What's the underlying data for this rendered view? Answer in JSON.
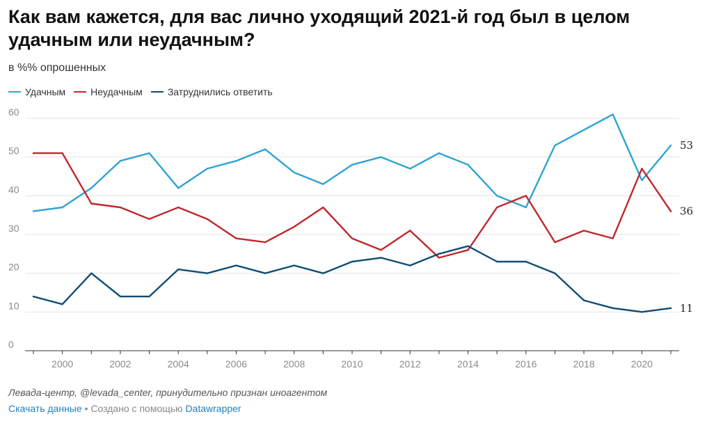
{
  "header": {
    "title": "Как вам кажется, для вас лично уходящий 2021-й год был в целом удачным или неудачным?",
    "subtitle": "в %% опрошенных"
  },
  "footer": {
    "source": "Левада-центр, @levada_center, принудительно признан иноагентом",
    "download_label": "Скачать данные",
    "separator": "•",
    "made_with": "Создано с помощью",
    "tool_name": "Datawrapper"
  },
  "chart_data": {
    "type": "line",
    "x": [
      1999,
      2000,
      2001,
      2002,
      2003,
      2004,
      2005,
      2006,
      2007,
      2008,
      2009,
      2010,
      2011,
      2012,
      2013,
      2014,
      2015,
      2016,
      2017,
      2018,
      2019,
      2020,
      2021
    ],
    "x_ticks": [
      "2000",
      "2002",
      "2004",
      "2006",
      "2008",
      "2010",
      "2012",
      "2014",
      "2016",
      "2018",
      "2020"
    ],
    "y_ticks": [
      "0",
      "10",
      "20",
      "30",
      "40",
      "50",
      "60"
    ],
    "ylim": [
      0,
      60
    ],
    "grid": true,
    "legend_position": "top-left",
    "series": [
      {
        "name": "Удачным",
        "color": "#2ea3d2",
        "values": [
          36,
          37,
          42,
          49,
          51,
          42,
          47,
          49,
          52,
          46,
          43,
          48,
          50,
          47,
          51,
          48,
          40,
          37,
          53,
          57,
          61,
          44,
          53
        ],
        "end_label": "53"
      },
      {
        "name": "Неудачным",
        "color": "#c0272d",
        "values": [
          51,
          51,
          38,
          37,
          34,
          37,
          34,
          29,
          28,
          32,
          37,
          29,
          26,
          31,
          24,
          26,
          37,
          40,
          28,
          31,
          29,
          47,
          36
        ],
        "end_label": "36"
      },
      {
        "name": "Затруднились ответить",
        "color": "#0e4c74",
        "values": [
          14,
          12,
          20,
          14,
          14,
          21,
          20,
          22,
          20,
          22,
          20,
          23,
          24,
          22,
          25,
          27,
          23,
          23,
          20,
          13,
          11,
          10,
          11
        ],
        "end_label": "11"
      }
    ]
  }
}
